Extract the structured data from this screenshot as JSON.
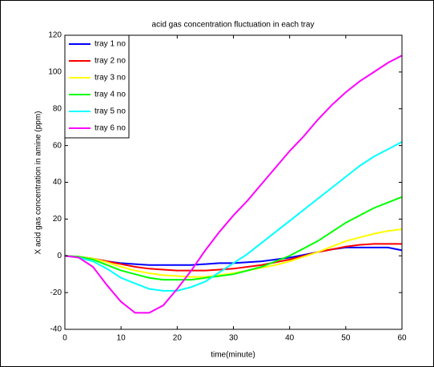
{
  "chart_data": {
    "type": "line",
    "title": "acid gas concentration fluctuation in each tray",
    "xlabel": "time(minute)",
    "ylabel": "X acid gas concentration in amine (ppm)",
    "x": [
      0,
      2.5,
      5,
      7.5,
      10,
      12.5,
      15,
      17.5,
      20,
      22.5,
      25,
      27.5,
      30,
      32.5,
      35,
      37.5,
      40,
      42.5,
      45,
      47.5,
      50,
      52.5,
      55,
      57.5,
      60
    ],
    "series": [
      {
        "name": "tray 1 no",
        "color": "#0000ff",
        "values": [
          0,
          -0.5,
          -1.5,
          -3,
          -4,
          -4.5,
          -5,
          -5,
          -5,
          -5,
          -4.5,
          -4,
          -4,
          -3.5,
          -3,
          -2,
          -1,
          0.5,
          2,
          3.5,
          4.5,
          4.5,
          4.5,
          4.5,
          3
        ]
      },
      {
        "name": "tray 2 no",
        "color": "#ff0000",
        "values": [
          0,
          -0.5,
          -1.5,
          -3,
          -4.5,
          -6,
          -7,
          -7.5,
          -8,
          -8,
          -8,
          -7.5,
          -7,
          -6,
          -5,
          -3.5,
          -2,
          0,
          2,
          3.5,
          5,
          6,
          6.5,
          6.5,
          6.5
        ]
      },
      {
        "name": "tray 3 no",
        "color": "#ffff00",
        "values": [
          0,
          -0.5,
          -1.5,
          -3.5,
          -6,
          -8,
          -9.5,
          -10.5,
          -11,
          -11.5,
          -11.5,
          -10.5,
          -9.5,
          -8,
          -6.5,
          -5,
          -3,
          -0.5,
          2,
          5,
          8,
          10,
          12,
          13.5,
          14.5
        ]
      },
      {
        "name": "tray 4 no",
        "color": "#00ff00",
        "values": [
          0,
          -0.5,
          -2,
          -5,
          -8,
          -10,
          -12,
          -13,
          -13,
          -13,
          -12,
          -11,
          -10,
          -8,
          -6,
          -3,
          0,
          4,
          8,
          13,
          18,
          22,
          26,
          29,
          32
        ]
      },
      {
        "name": "tray 5 no",
        "color": "#00ffff",
        "values": [
          0,
          -1,
          -3,
          -7,
          -12,
          -15,
          -18,
          -19,
          -19,
          -17,
          -14,
          -9,
          -4,
          1,
          7,
          13,
          19,
          25,
          31,
          37,
          43,
          49,
          54,
          58,
          62
        ]
      },
      {
        "name": "tray 6 no",
        "color": "#ff00ff",
        "values": [
          0,
          -1,
          -6,
          -16,
          -25,
          -31,
          -31,
          -27,
          -18,
          -8,
          3,
          13,
          22,
          30,
          39,
          48,
          57,
          65,
          74,
          82,
          89,
          95,
          100,
          105,
          109
        ]
      }
    ],
    "xlim": [
      0,
      60
    ],
    "xticks": [
      0,
      10,
      20,
      30,
      40,
      50,
      60
    ],
    "ylim": [
      -40,
      120
    ],
    "yticks": [
      -40,
      -20,
      0,
      20,
      40,
      60,
      80,
      100,
      120
    ],
    "legend": "upper left"
  }
}
